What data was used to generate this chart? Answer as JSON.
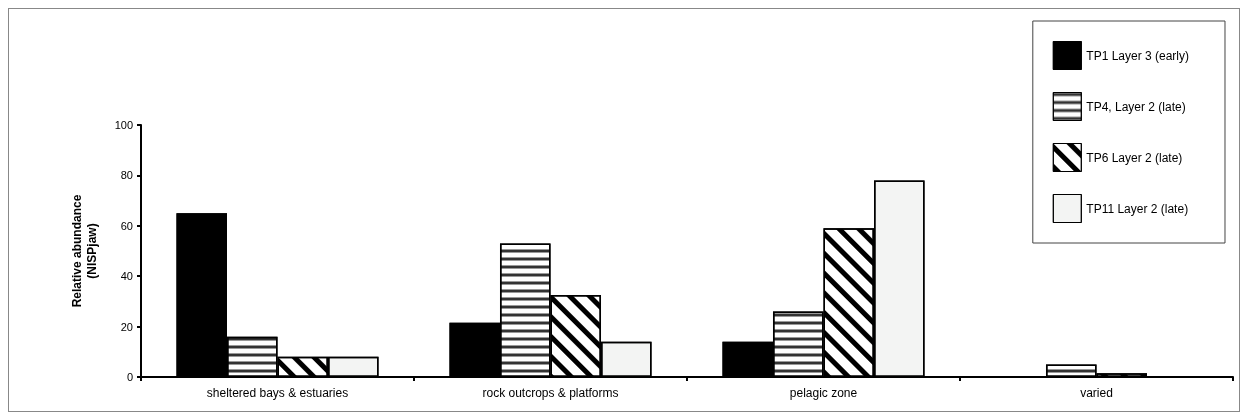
{
  "chart_data": {
    "type": "bar",
    "ylabel": "Relative abundance (NISPjaw)",
    "categories": [
      "sheltered bays & estuaries",
      "rock outcrops & platforms",
      "pelagic zone",
      "varied"
    ],
    "series": [
      {
        "name": "TP1 Layer 3 (early)",
        "color": "#000000",
        "values": [
          65,
          21.5,
          14,
          0
        ]
      },
      {
        "name": "TP4, Layer 2 (late)",
        "color": "#ffffff",
        "values": [
          16,
          53,
          26,
          5
        ]
      },
      {
        "name": "TP6 Layer 2 (late)",
        "color": "#ffffff",
        "values": [
          8,
          32.5,
          59,
          1.5
        ]
      },
      {
        "name": "TP11 Layer 2 (late)",
        "color": "#f3f4f3",
        "values": [
          8,
          14,
          78,
          0
        ]
      }
    ],
    "ylim": [
      0,
      100
    ],
    "yticks": [
      0,
      20,
      40,
      60,
      80,
      100
    ],
    "grid": false,
    "legend": "top right"
  }
}
